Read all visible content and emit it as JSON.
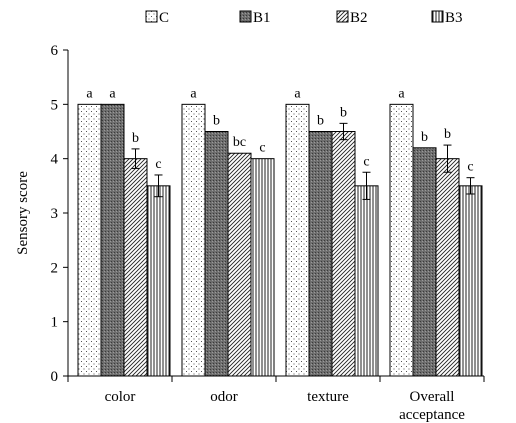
{
  "chart_data": {
    "type": "bar",
    "title": "",
    "xlabel": "",
    "ylabel": "Sensory score",
    "ylim": [
      0,
      6
    ],
    "yticks": [
      0,
      1,
      2,
      3,
      4,
      5,
      6
    ],
    "grid": false,
    "legend_position": "top",
    "categories": [
      "color",
      "odor",
      "texture",
      "Overall\nacceptance"
    ],
    "series": [
      {
        "name": "C",
        "pattern": "dots",
        "values": [
          5.0,
          5.0,
          5.0,
          5.0
        ],
        "errors": [
          0,
          0,
          0,
          0
        ],
        "labels": [
          "a",
          "a",
          "a",
          "a"
        ]
      },
      {
        "name": "B1",
        "pattern": "dark",
        "values": [
          5.0,
          4.5,
          4.5,
          4.2
        ],
        "errors": [
          0,
          0,
          0,
          0
        ],
        "labels": [
          "a",
          "b",
          "b",
          "b"
        ]
      },
      {
        "name": "B2",
        "pattern": "diagonal",
        "values": [
          4.0,
          4.1,
          4.5,
          4.0
        ],
        "errors": [
          0.18,
          0,
          0.15,
          0.25
        ],
        "labels": [
          "b",
          "bc",
          "b",
          "b"
        ]
      },
      {
        "name": "B3",
        "pattern": "vertical",
        "values": [
          3.5,
          4.0,
          3.5,
          3.5
        ],
        "errors": [
          0.2,
          0,
          0.25,
          0.15
        ],
        "labels": [
          "c",
          "c",
          "c",
          "c"
        ]
      }
    ]
  }
}
